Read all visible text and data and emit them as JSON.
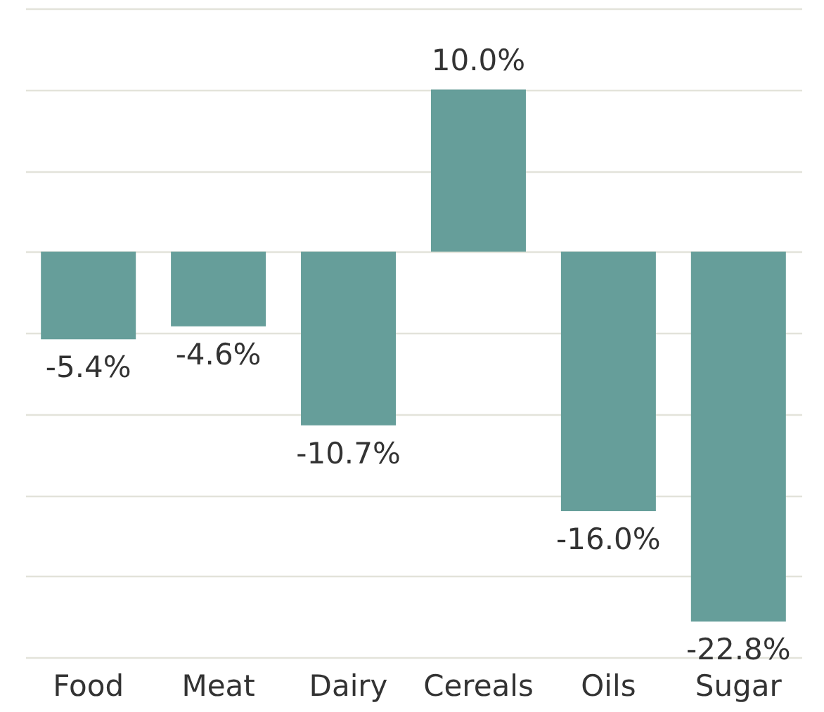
{
  "chart_data": {
    "type": "bar",
    "categories": [
      "Food",
      "Meat",
      "Dairy",
      "Cereals",
      "Oils",
      "Sugar"
    ],
    "values": [
      -5.4,
      -4.6,
      -10.7,
      10.0,
      -16.0,
      -22.8
    ],
    "value_labels": [
      "-5.4%",
      "-4.6%",
      "-10.7%",
      "10.0%",
      "-16.0%",
      "-22.8%"
    ],
    "color": "#669e9a",
    "ylim": [
      -25,
      15
    ],
    "yticks": [
      {
        "value": -25,
        "label": null
      },
      {
        "value": -20,
        "label": null
      },
      {
        "value": -15,
        "label": null
      },
      {
        "value": -10,
        "label": null
      },
      {
        "value": -5,
        "label": null
      },
      {
        "value": 0,
        "label": null
      },
      {
        "value": 5,
        "label": null
      },
      {
        "value": 10,
        "label": null
      },
      {
        "value": 15,
        "label": null
      }
    ],
    "grid": "y"
  }
}
